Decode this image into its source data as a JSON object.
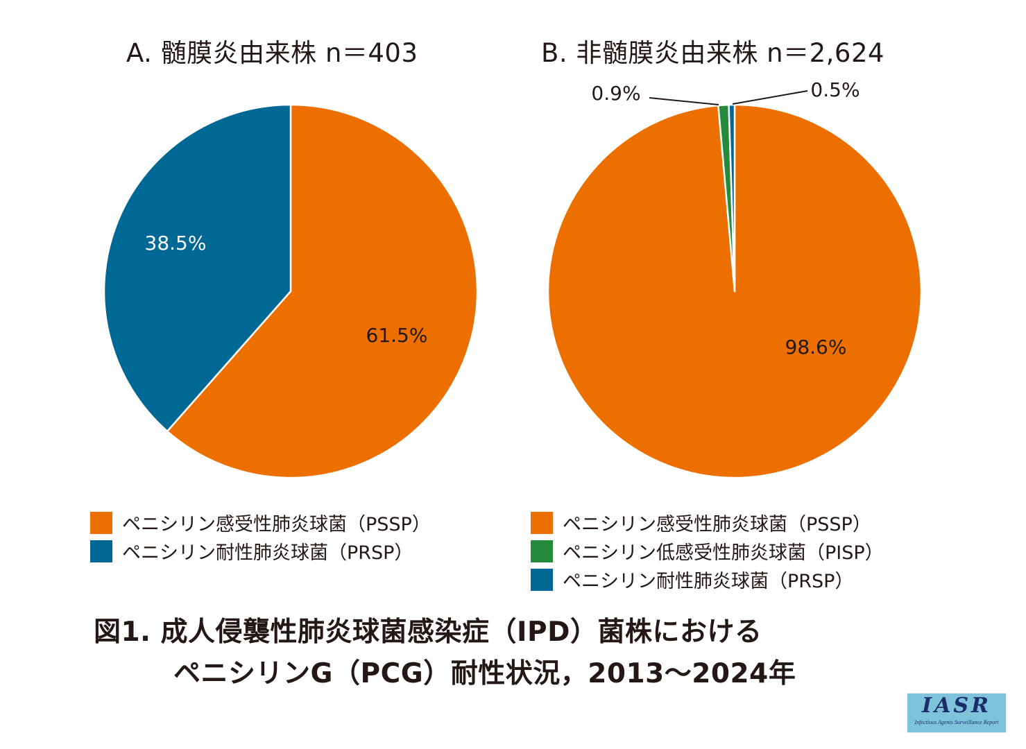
{
  "colors": {
    "PSSP": "#ec6f00",
    "PISP": "#248a3c",
    "PRSP": "#006894",
    "text": "#231815"
  },
  "chart_data": [
    {
      "type": "pie",
      "title": "A. 髄膜炎由来株 n＝403",
      "n": 403,
      "slices": [
        {
          "key": "PSSP",
          "label": "ペニシリン感受性肺炎球菌（PSSP）",
          "value": 61.5,
          "data_label": "61.5%",
          "label_color": "#231815"
        },
        {
          "key": "PRSP",
          "label": "ペニシリン耐性肺炎球菌（PRSP）",
          "value": 38.5,
          "data_label": "38.5%",
          "label_color": "#ffffff"
        }
      ],
      "legend": [
        "ペニシリン感受性肺炎球菌（PSSP）",
        "ペニシリン耐性肺炎球菌（PRSP）"
      ],
      "legend_placement": "bottom"
    },
    {
      "type": "pie",
      "title": "B. 非髄膜炎由来株 n＝2,624",
      "n": 2624,
      "slices": [
        {
          "key": "PSSP",
          "label": "ペニシリン感受性肺炎球菌（PSSP）",
          "value": 98.6,
          "data_label": "98.6%",
          "label_color": "#231815"
        },
        {
          "key": "PISP",
          "label": "ペニシリン低感受性肺炎球菌（PISP）",
          "value": 0.9,
          "data_label": "0.9%",
          "label_color": "#231815"
        },
        {
          "key": "PRSP",
          "label": "ペニシリン耐性肺炎球菌（PRSP）",
          "value": 0.5,
          "data_label": "0.5%",
          "label_color": "#231815"
        }
      ],
      "legend": [
        "ペニシリン感受性肺炎球菌（PSSP）",
        "ペニシリン低感受性肺炎球菌（PISP）",
        "ペニシリン耐性肺炎球菌（PRSP）"
      ],
      "legend_placement": "bottom"
    }
  ],
  "caption": {
    "line1": "図1. 成人侵襲性肺炎球菌感染症（IPD）菌株における",
    "line2": "ペニシリンG（PCG）耐性状況，2013～2024年"
  },
  "logo": {
    "main": "IASR",
    "sub": "Infectious Agents Surveillance Report"
  }
}
